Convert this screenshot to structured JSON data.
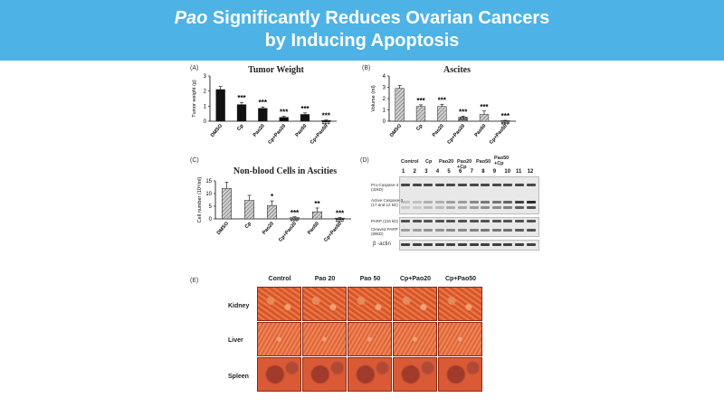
{
  "slide": {
    "title_em": "Pao",
    "title_rest": " Significantly Reduces Ovarian Cancers",
    "title_line2": "by Inducing Apoptosis",
    "accent_color": "#4db3e6"
  },
  "chart_data": [
    {
      "panel": "(A)",
      "type": "bar",
      "title": "Tumor Weight",
      "ylabel": "Tumor weight (g)",
      "categories": [
        "DMSO",
        "Cp",
        "Pao20",
        "Cp+Pao20",
        "Pao50",
        "Cp+Pao50"
      ],
      "values": [
        2.1,
        1.1,
        0.85,
        0.25,
        0.45,
        0.05
      ],
      "errors": [
        0.2,
        0.15,
        0.1,
        0.07,
        0.1,
        0.03
      ],
      "annotations": [
        "",
        "***",
        "***",
        "***\n###",
        "***",
        "***\n###"
      ],
      "ylim": [
        0,
        3
      ],
      "yticks": [
        "0",
        "1",
        "2",
        "3"
      ],
      "color": "#111111"
    },
    {
      "panel": "(B)",
      "type": "bar",
      "title": "Ascites",
      "ylabel": "Volume (ml)",
      "categories": [
        "DMSO",
        "Cp",
        "Pao20",
        "Cp+Pao20",
        "Pao50",
        "Cp+Pao50"
      ],
      "values": [
        2.9,
        1.3,
        1.3,
        0.35,
        0.6,
        0.05
      ],
      "errors": [
        0.25,
        0.15,
        0.2,
        0.1,
        0.3,
        0.03
      ],
      "annotations": [
        "",
        "***",
        "***",
        "***\n###",
        "***",
        "***\n###"
      ],
      "ylim": [
        0,
        4
      ],
      "yticks": [
        "0",
        "1",
        "2",
        "3",
        "4"
      ],
      "color": "#999999"
    },
    {
      "panel": "(C)",
      "type": "bar",
      "title": "Non-blood Cells in Ascities",
      "ylabel": "Cell number (10⁸/ml)",
      "categories": [
        "DMSO",
        "Cp",
        "Pao20",
        "Cp+Pao20",
        "Pao50",
        "Cp+Pao50"
      ],
      "values": [
        12,
        7.3,
        5.3,
        0.5,
        2.8,
        0.3
      ],
      "errors": [
        2.5,
        2.0,
        1.8,
        0.3,
        1.5,
        0.2
      ],
      "annotations": [
        "",
        "",
        "*",
        "***\n###",
        "**",
        "***\n###"
      ],
      "ylim": [
        0,
        15
      ],
      "yticks": [
        "0",
        "5",
        "10",
        "15"
      ],
      "color": "#999999"
    }
  ],
  "blot": {
    "panel": "(D)",
    "groups": [
      "Control",
      "Cp",
      "Pao20",
      "Pao20\n+Cp",
      "Pao50",
      "Pao50\n+Cp"
    ],
    "lanes": [
      "1",
      "2",
      "3",
      "4",
      "5",
      "6",
      "7",
      "8",
      "9",
      "10",
      "11",
      "12"
    ],
    "labels": {
      "pro_caspase": "Pro-Caspase-3\n(32kD)",
      "active_caspase": "Active Caspase-3\n(17 and 12 kD)",
      "parp": "PARP (116 kD)",
      "cleaved_parp": "Cleaved PARP\n(89kD)",
      "actin": "β -actin"
    }
  },
  "histology": {
    "panel": "(E)",
    "columns": [
      "Control",
      "Pao 20",
      "Pao 50",
      "Cp+Pao20",
      "Cp+Pao50"
    ],
    "rows": [
      "Kidney",
      "Liver",
      "Spleen"
    ]
  }
}
